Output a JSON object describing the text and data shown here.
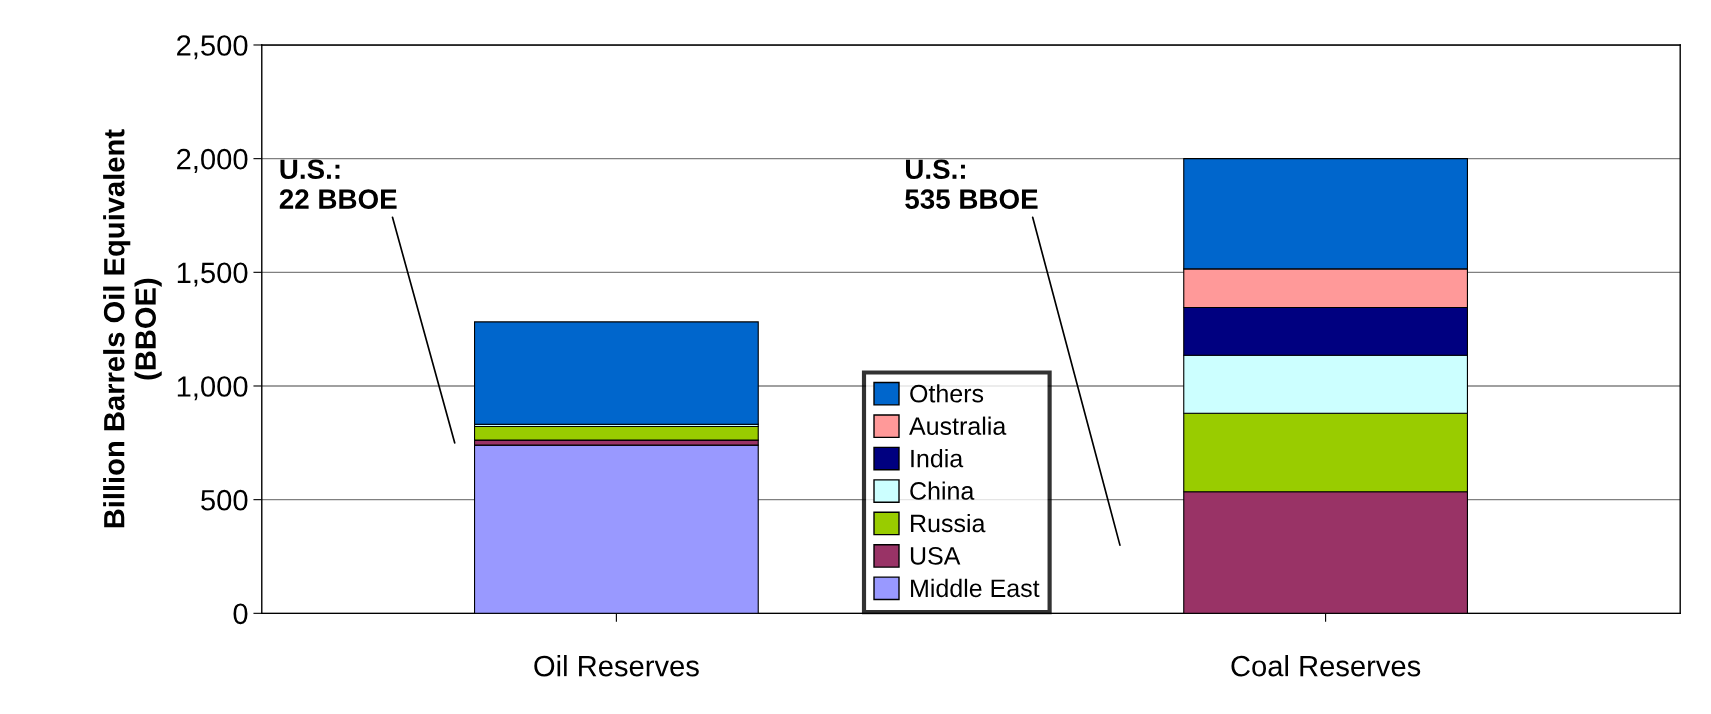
{
  "chart_data": {
    "type": "bar",
    "stacked": true,
    "ylabel": "Billion Barrels Oil Equivalent\n(BBOE)",
    "categories": [
      "Oil Reserves",
      "Coal Reserves"
    ],
    "series": [
      {
        "name": "Middle East",
        "color": "#9999ff",
        "values": [
          740,
          0
        ]
      },
      {
        "name": "USA",
        "color": "#993366",
        "values": [
          22,
          535
        ]
      },
      {
        "name": "Russia",
        "color": "#99cc00",
        "values": [
          60,
          345
        ]
      },
      {
        "name": "China",
        "color": "#ccffff",
        "values": [
          10,
          255
        ]
      },
      {
        "name": "India",
        "color": "#000080",
        "values": [
          null,
          210
        ]
      },
      {
        "name": "Australia",
        "color": "#ff9999",
        "values": [
          null,
          170
        ]
      },
      {
        "name": "Others",
        "color": "#0066cc",
        "values": [
          450,
          485
        ]
      }
    ],
    "ylim": [
      0,
      2500
    ],
    "yticks": [
      0,
      500,
      {
        "value": 1000,
        "label": "1,000"
      },
      {
        "value": 1500,
        "label": "1,500"
      },
      {
        "value": 2000,
        "label": "2,000"
      },
      {
        "value": 2500,
        "label": "2,500"
      }
    ],
    "grid": "y",
    "legend": "bottom",
    "annotations": [
      "U.S.:\n22 BBOE",
      "U.S.:\n535 BBOE"
    ]
  }
}
